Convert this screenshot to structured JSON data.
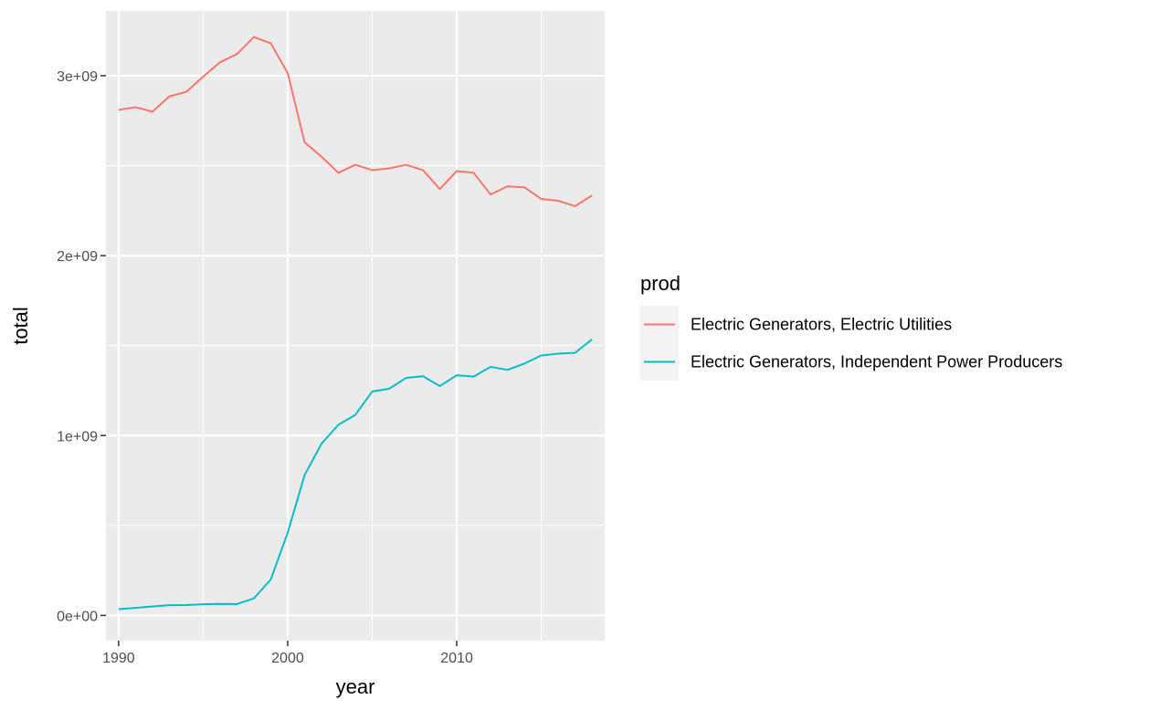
{
  "chart_data": {
    "type": "line",
    "xlabel": "year",
    "ylabel": "total",
    "xlim": [
      1989.25,
      2018.75
    ],
    "ylim": [
      -140000000,
      3360000000
    ],
    "x_ticks": [
      1990,
      2000,
      2010
    ],
    "y_ticks": [
      0,
      1000000000,
      2000000000,
      3000000000
    ],
    "y_tick_labels": [
      "0e+00",
      "1e+09",
      "2e+09",
      "3e+09"
    ],
    "grid": true,
    "legend": {
      "title": "prod",
      "position": "right"
    },
    "x": [
      1990,
      1991,
      1992,
      1993,
      1994,
      1995,
      1996,
      1997,
      1998,
      1999,
      2000,
      2001,
      2002,
      2003,
      2004,
      2005,
      2006,
      2007,
      2008,
      2009,
      2010,
      2011,
      2012,
      2013,
      2014,
      2015,
      2016,
      2017,
      2018
    ],
    "series": [
      {
        "name": "Electric Generators, Electric Utilities",
        "color": "#F8766D",
        "values": [
          2810000000,
          2825000000,
          2800000000,
          2885000000,
          2910000000,
          2995000000,
          3075000000,
          3120000000,
          3215000000,
          3180000000,
          3015000000,
          2630000000,
          2550000000,
          2460000000,
          2505000000,
          2475000000,
          2485000000,
          2505000000,
          2475000000,
          2370000000,
          2470000000,
          2460000000,
          2340000000,
          2385000000,
          2380000000,
          2315000000,
          2305000000,
          2275000000,
          2335000000
        ]
      },
      {
        "name": "Electric Generators, Independent Power Producers",
        "color": "#00BFC4",
        "values": [
          35000000,
          42000000,
          50000000,
          57000000,
          58000000,
          62000000,
          64000000,
          63000000,
          95000000,
          200000000,
          460000000,
          780000000,
          955000000,
          1060000000,
          1115000000,
          1245000000,
          1260000000,
          1320000000,
          1330000000,
          1275000000,
          1335000000,
          1328000000,
          1382000000,
          1365000000,
          1400000000,
          1445000000,
          1455000000,
          1460000000,
          1535000000
        ]
      }
    ]
  }
}
